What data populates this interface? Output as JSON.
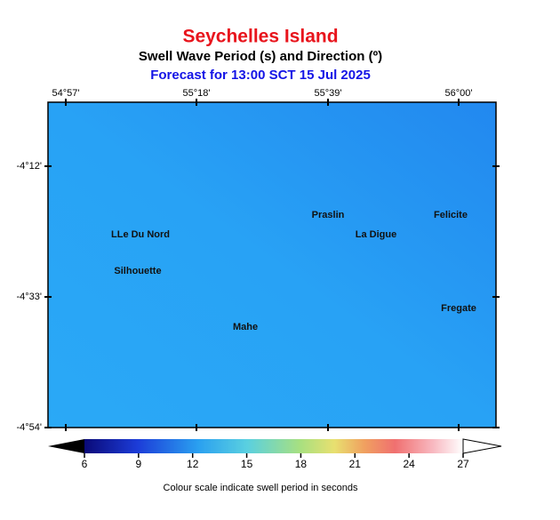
{
  "header": {
    "title": "Seychelles Island",
    "subtitle": "Swell Wave Period (s) and Direction (º)",
    "forecast": "Forecast for  13:00 SCT 15 Jul 2025"
  },
  "map": {
    "lon_ticks": [
      "54°57'",
      "55°18'",
      "55°39'",
      "56°00'"
    ],
    "lat_ticks": [
      "-4°12'",
      "-4°33'",
      "-4°54'"
    ],
    "places": [
      "LLe Du Nord",
      "Silhouette",
      "Praslin",
      "La Digue",
      "Felicite",
      "Fregate",
      "Mahe"
    ]
  },
  "colorbar": {
    "ticks": [
      6,
      9,
      12,
      15,
      18,
      21,
      24,
      27
    ],
    "caption": "Colour scale indicate swell period in seconds"
  }
}
